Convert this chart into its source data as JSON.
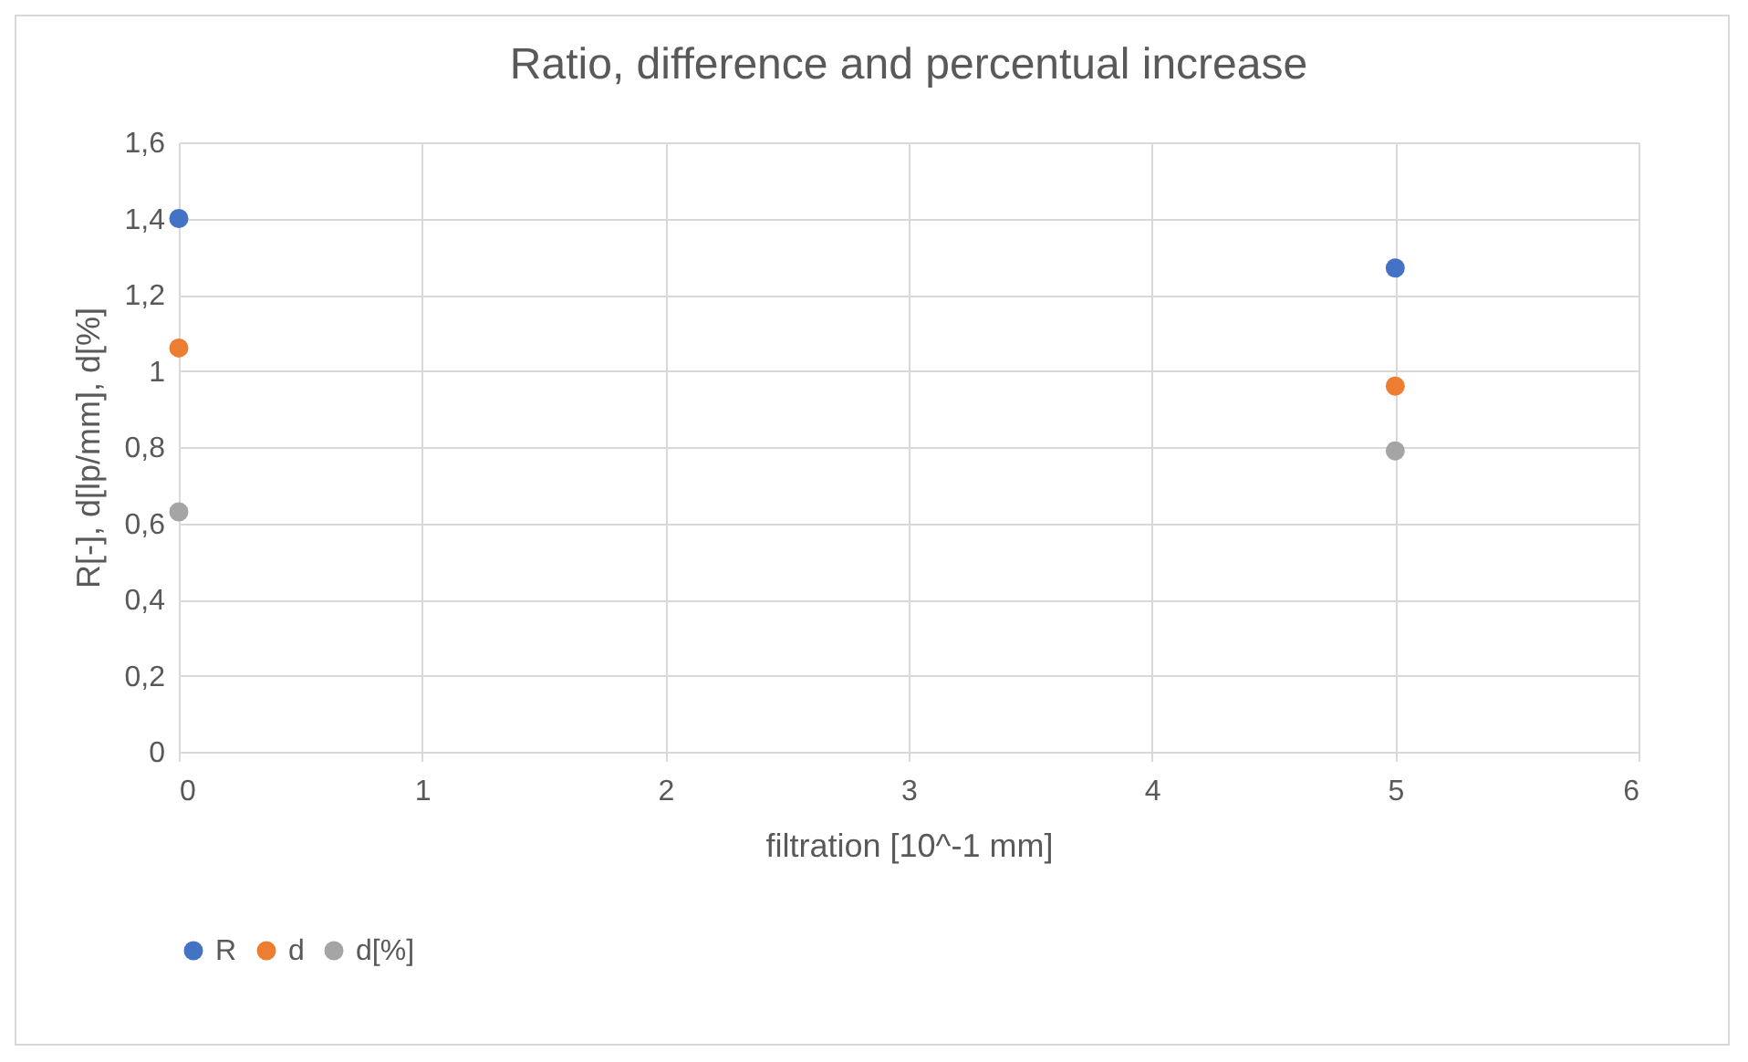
{
  "chart_data": {
    "type": "scatter",
    "title": "Ratio, difference and percentual increase",
    "xlabel": "filtration [10^-1 mm]",
    "ylabel": "R[-], d[lp/mm], d[%]",
    "x": [
      0,
      5
    ],
    "series": [
      {
        "name": "R",
        "color": "#4472c4",
        "values": [
          1.4,
          1.27
        ]
      },
      {
        "name": "d",
        "color": "#ed7d31",
        "values": [
          1.06,
          0.96
        ]
      },
      {
        "name": "d[%]",
        "color": "#a5a5a5",
        "values": [
          0.63,
          0.79
        ]
      }
    ],
    "xlim": [
      0,
      6
    ],
    "xticks": [
      0,
      1,
      2,
      3,
      4,
      5,
      6
    ],
    "ylim": [
      0,
      1.6
    ],
    "yticks": [
      0,
      {
        "value": 0.2,
        "label": "0,2"
      },
      {
        "value": 0.4,
        "label": "0,4"
      },
      {
        "value": 0.6,
        "label": "0,6"
      },
      {
        "value": 0.8,
        "label": "0,8"
      },
      1,
      {
        "value": 1.2,
        "label": "1,2"
      },
      {
        "value": 1.4,
        "label": "1,4"
      },
      {
        "value": 1.6,
        "label": "1,6"
      }
    ],
    "grid": true,
    "legend": "bottom",
    "marker": "circle"
  }
}
